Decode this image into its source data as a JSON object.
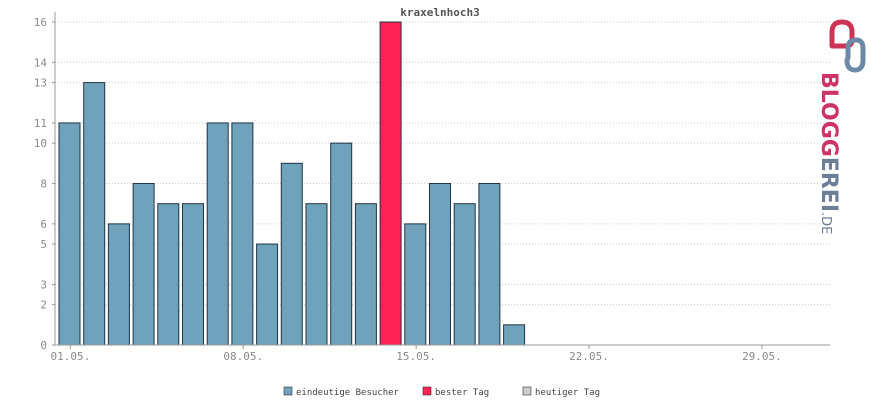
{
  "chart_data": {
    "type": "bar",
    "title": "kraxelnhoch3",
    "x_tick_labels": [
      "01.05.",
      "08.05.",
      "15.05.",
      "22.05.",
      "29.05."
    ],
    "y_ticks": [
      0,
      2,
      3,
      5,
      6,
      8,
      10,
      11,
      13,
      14,
      16
    ],
    "ylim": [
      0,
      16
    ],
    "grid": true,
    "series": [
      {
        "name": "eindeutige Besucher",
        "color": "#6fa3bb",
        "values": [
          11,
          13,
          6,
          8,
          7,
          7,
          11,
          11,
          5,
          9,
          7,
          10,
          7,
          16,
          6,
          8,
          7,
          8,
          1,
          0,
          0,
          0,
          0,
          0,
          0,
          0,
          0,
          0,
          0,
          0,
          0
        ]
      }
    ],
    "best_day": {
      "index": 13,
      "color": "#ff2255"
    },
    "legend": [
      {
        "label": "eindeutige Besucher",
        "color": "#6fa3bb"
      },
      {
        "label": "bester Tag",
        "color": "#ff2255"
      },
      {
        "label": "heutiger Tag",
        "color": "#cccccc"
      }
    ],
    "legend_position": "bottom"
  },
  "logo": {
    "text": "BLOGGEREI",
    "suffix": ".DE"
  }
}
